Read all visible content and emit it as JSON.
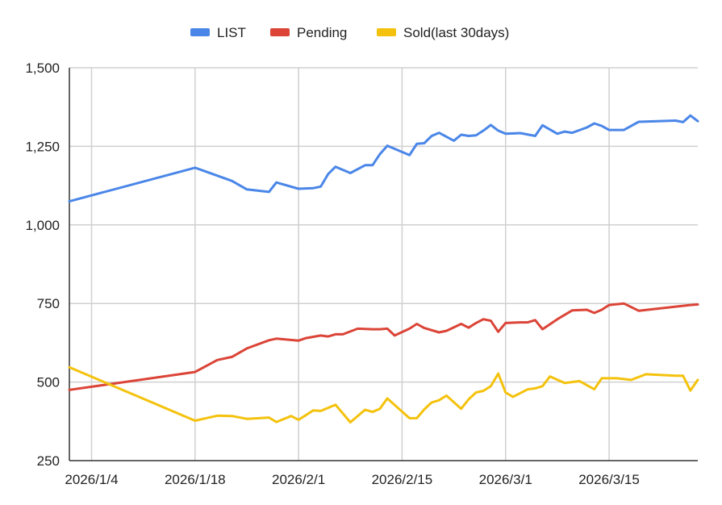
{
  "chart_data": {
    "type": "line",
    "title": "",
    "xlabel": "",
    "ylabel": "",
    "x_type": "date",
    "xlim": [
      "2026-01-01",
      "2026-03-27"
    ],
    "ylim": [
      250,
      1500
    ],
    "y_ticks": [
      250,
      500,
      750,
      1000,
      1250,
      1500
    ],
    "y_tick_labels": [
      "250",
      "500",
      "750",
      "1,000",
      "1,250",
      "1,500"
    ],
    "x_ticks": [
      "2026-01-04",
      "2026-01-18",
      "2026-02-01",
      "2026-02-15",
      "2026-03-01",
      "2026-03-15"
    ],
    "x_tick_labels": [
      "2026/1/4",
      "2026/1/18",
      "2026/2/1",
      "2026/2/15",
      "2026/3/1",
      "2026/3/15"
    ],
    "grid": true,
    "legend_position": "top-center",
    "series": [
      {
        "name": "LIST",
        "color": "#4a86e8",
        "points": [
          [
            "2026-01-01",
            1075
          ],
          [
            "2026-01-18",
            1182
          ],
          [
            "2026-01-23",
            1140
          ],
          [
            "2026-01-25",
            1113
          ],
          [
            "2026-01-28",
            1105
          ],
          [
            "2026-01-29",
            1135
          ],
          [
            "2026-02-01",
            1115
          ],
          [
            "2026-02-03",
            1117
          ],
          [
            "2026-02-04",
            1122
          ],
          [
            "2026-02-05",
            1162
          ],
          [
            "2026-02-06",
            1185
          ],
          [
            "2026-02-08",
            1165
          ],
          [
            "2026-02-10",
            1190
          ],
          [
            "2026-02-11",
            1190
          ],
          [
            "2026-02-12",
            1225
          ],
          [
            "2026-02-13",
            1252
          ],
          [
            "2026-02-16",
            1222
          ],
          [
            "2026-02-17",
            1258
          ],
          [
            "2026-02-18",
            1260
          ],
          [
            "2026-02-19",
            1283
          ],
          [
            "2026-02-20",
            1293
          ],
          [
            "2026-02-22",
            1268
          ],
          [
            "2026-02-23",
            1287
          ],
          [
            "2026-02-24",
            1283
          ],
          [
            "2026-02-25",
            1285
          ],
          [
            "2026-02-26",
            1300
          ],
          [
            "2026-02-27",
            1318
          ],
          [
            "2026-02-28",
            1300
          ],
          [
            "2026-03-01",
            1290
          ],
          [
            "2026-03-03",
            1292
          ],
          [
            "2026-03-05",
            1283
          ],
          [
            "2026-03-06",
            1317
          ],
          [
            "2026-03-08",
            1290
          ],
          [
            "2026-03-09",
            1297
          ],
          [
            "2026-03-10",
            1293
          ],
          [
            "2026-03-12",
            1310
          ],
          [
            "2026-03-13",
            1323
          ],
          [
            "2026-03-14",
            1315
          ],
          [
            "2026-03-15",
            1302
          ],
          [
            "2026-03-17",
            1302
          ],
          [
            "2026-03-19",
            1328
          ],
          [
            "2026-03-24",
            1332
          ],
          [
            "2026-03-25",
            1327
          ],
          [
            "2026-03-26",
            1348
          ],
          [
            "2026-03-27",
            1330
          ]
        ]
      },
      {
        "name": "Pending",
        "color": "#db4437",
        "points": [
          [
            "2026-01-01",
            475
          ],
          [
            "2026-01-18",
            532
          ],
          [
            "2026-01-21",
            570
          ],
          [
            "2026-01-23",
            580
          ],
          [
            "2026-01-25",
            607
          ],
          [
            "2026-01-28",
            633
          ],
          [
            "2026-01-29",
            638
          ],
          [
            "2026-02-01",
            632
          ],
          [
            "2026-02-02",
            640
          ],
          [
            "2026-02-04",
            648
          ],
          [
            "2026-02-05",
            645
          ],
          [
            "2026-02-06",
            652
          ],
          [
            "2026-02-07",
            652
          ],
          [
            "2026-02-09",
            670
          ],
          [
            "2026-02-11",
            668
          ],
          [
            "2026-02-12",
            668
          ],
          [
            "2026-02-13",
            670
          ],
          [
            "2026-02-14",
            648
          ],
          [
            "2026-02-16",
            670
          ],
          [
            "2026-02-17",
            685
          ],
          [
            "2026-02-18",
            672
          ],
          [
            "2026-02-20",
            658
          ],
          [
            "2026-02-21",
            663
          ],
          [
            "2026-02-23",
            685
          ],
          [
            "2026-02-24",
            673
          ],
          [
            "2026-02-25",
            688
          ],
          [
            "2026-02-26",
            700
          ],
          [
            "2026-02-27",
            695
          ],
          [
            "2026-02-28",
            660
          ],
          [
            "2026-03-01",
            688
          ],
          [
            "2026-03-03",
            690
          ],
          [
            "2026-03-04",
            690
          ],
          [
            "2026-03-05",
            697
          ],
          [
            "2026-03-06",
            668
          ],
          [
            "2026-03-08",
            700
          ],
          [
            "2026-03-10",
            728
          ],
          [
            "2026-03-12",
            730
          ],
          [
            "2026-03-13",
            720
          ],
          [
            "2026-03-14",
            730
          ],
          [
            "2026-03-15",
            745
          ],
          [
            "2026-03-17",
            750
          ],
          [
            "2026-03-19",
            727
          ],
          [
            "2026-03-24",
            740
          ],
          [
            "2026-03-26",
            745
          ],
          [
            "2026-03-27",
            747
          ]
        ]
      },
      {
        "name": "Sold(last 30days)",
        "color": "#f4c20d",
        "points": [
          [
            "2026-01-01",
            547
          ],
          [
            "2026-01-18",
            377
          ],
          [
            "2026-01-21",
            393
          ],
          [
            "2026-01-23",
            392
          ],
          [
            "2026-01-25",
            383
          ],
          [
            "2026-01-28",
            387
          ],
          [
            "2026-01-29",
            373
          ],
          [
            "2026-01-31",
            392
          ],
          [
            "2026-02-01",
            380
          ],
          [
            "2026-02-03",
            410
          ],
          [
            "2026-02-04",
            408
          ],
          [
            "2026-02-06",
            428
          ],
          [
            "2026-02-08",
            372
          ],
          [
            "2026-02-10",
            412
          ],
          [
            "2026-02-11",
            405
          ],
          [
            "2026-02-12",
            415
          ],
          [
            "2026-02-13",
            448
          ],
          [
            "2026-02-16",
            385
          ],
          [
            "2026-02-17",
            385
          ],
          [
            "2026-02-18",
            413
          ],
          [
            "2026-02-19",
            435
          ],
          [
            "2026-02-20",
            442
          ],
          [
            "2026-02-21",
            457
          ],
          [
            "2026-02-23",
            415
          ],
          [
            "2026-02-24",
            445
          ],
          [
            "2026-02-25",
            467
          ],
          [
            "2026-02-26",
            472
          ],
          [
            "2026-02-27",
            487
          ],
          [
            "2026-02-28",
            527
          ],
          [
            "2026-03-01",
            467
          ],
          [
            "2026-03-02",
            453
          ],
          [
            "2026-03-04",
            477
          ],
          [
            "2026-03-05",
            480
          ],
          [
            "2026-03-06",
            487
          ],
          [
            "2026-03-07",
            518
          ],
          [
            "2026-03-09",
            497
          ],
          [
            "2026-03-11",
            503
          ],
          [
            "2026-03-13",
            477
          ],
          [
            "2026-03-14",
            512
          ],
          [
            "2026-03-16",
            512
          ],
          [
            "2026-03-18",
            507
          ],
          [
            "2026-03-20",
            525
          ],
          [
            "2026-03-24",
            520
          ],
          [
            "2026-03-25",
            520
          ],
          [
            "2026-03-26",
            473
          ],
          [
            "2026-03-27",
            507
          ]
        ]
      }
    ]
  }
}
